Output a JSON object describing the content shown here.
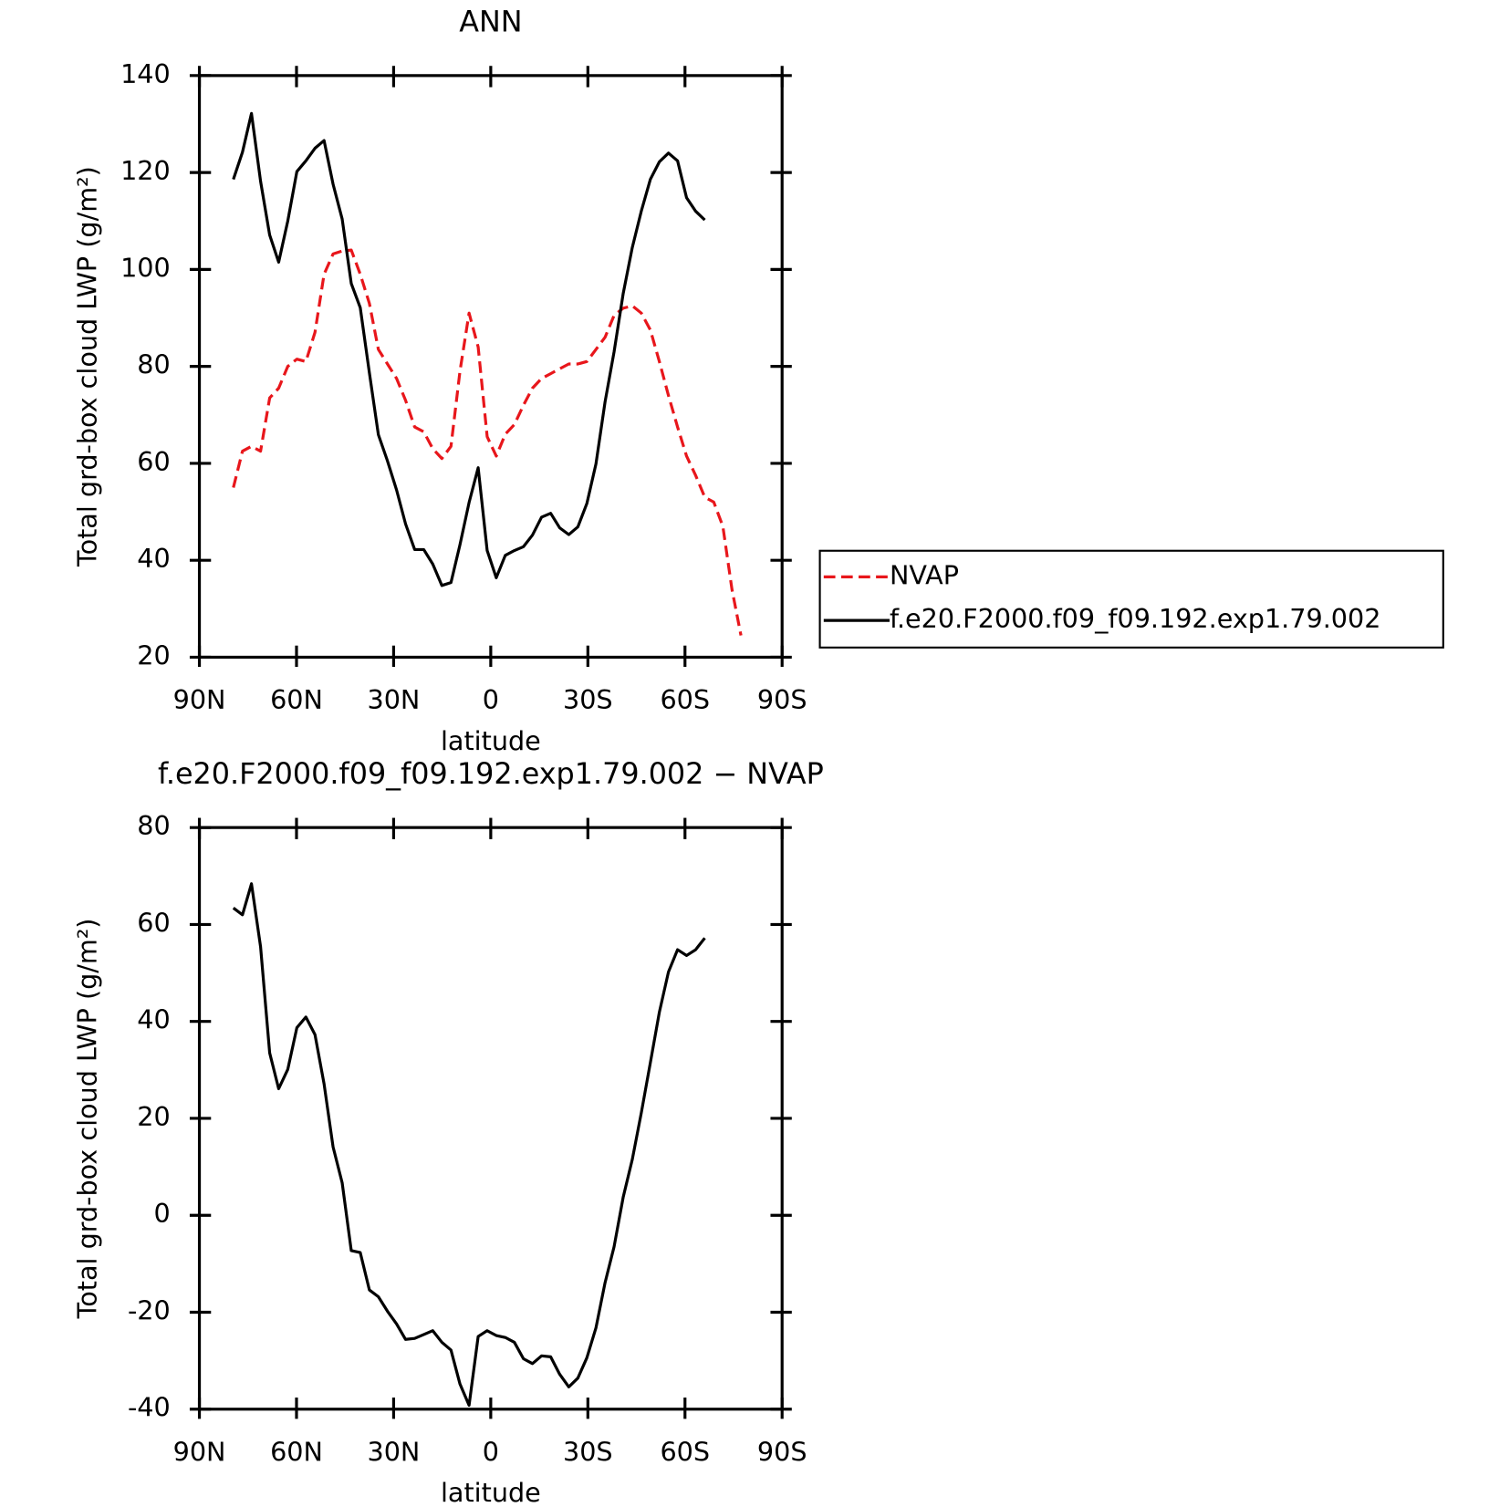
{
  "chart_data": [
    {
      "type": "line",
      "title": "ANN",
      "xlabel": "latitude",
      "ylabel": "Total grd-box cloud LWP (g/m²)",
      "x": [
        79.5,
        76.7,
        73.9,
        71.1,
        68.3,
        65.5,
        62.7,
        59.9,
        57.1,
        54.3,
        51.5,
        48.7,
        45.9,
        43.1,
        40.3,
        37.5,
        34.7,
        31.9,
        29.1,
        26.3,
        23.5,
        20.7,
        17.9,
        15.1,
        12.3,
        9.5,
        6.7,
        3.9,
        1.1,
        -1.7,
        -4.5,
        -7.3,
        -10.1,
        -12.9,
        -15.7,
        -18.5,
        -21.3,
        -24.1,
        -26.9,
        -29.7,
        -32.5,
        -35.3,
        -38.1,
        -40.9,
        -43.7,
        -46.5,
        -49.3,
        -52.1,
        -54.9,
        -57.7,
        -60.5,
        -63.3,
        -66.1,
        -68.9,
        -71.7,
        -74.5,
        -77.3
      ],
      "series": [
        {
          "name": "NVAP",
          "color": "#e8161b",
          "line_style": "dashed",
          "values": [
            55,
            62.5,
            63.5,
            62.5,
            73.5,
            75.5,
            80,
            81.5,
            81,
            87,
            99,
            103.2,
            103.8,
            104,
            99,
            93,
            83.5,
            80.5,
            77.5,
            73,
            67.5,
            66.5,
            63,
            61,
            63.5,
            79,
            91,
            84,
            65.5,
            61.5,
            66,
            68,
            72,
            75.5,
            77.5,
            78.5,
            79.5,
            80.5,
            80.5,
            81,
            83.5,
            86,
            90.5,
            92,
            92.5,
            91,
            87.5,
            81,
            74,
            67.5,
            61.5,
            57.5,
            53,
            52,
            47,
            34,
            24.5
          ]
        },
        {
          "name": "f.e20.F2000.f09_f09.192.exp1.79.002",
          "color": "#000000",
          "line_style": "solid",
          "values": [
            118.6,
            124.2,
            132.2,
            118.2,
            107.1,
            101.5,
            110.0,
            120.2,
            122.4,
            125.0,
            126.6,
            117.6,
            110.4,
            97.1,
            92.1,
            78.7,
            65.9,
            60.5,
            54.5,
            47.5,
            42.2,
            42.2,
            39.2,
            34.8,
            35.4,
            43.2,
            51.9,
            59.1,
            42.0,
            36.4,
            41.0,
            42.0,
            42.8,
            45.2,
            48.9,
            49.7,
            46.7,
            45.3,
            46.9,
            51.7,
            59.9,
            72.7,
            83,
            95,
            104.5,
            112,
            118.6,
            122.2,
            124,
            122.4,
            114.8,
            112,
            110.2,
            null,
            null,
            null,
            null
          ]
        }
      ],
      "xlim": [
        90,
        -90
      ],
      "xticks": [
        {
          "value": 90,
          "label": "90N"
        },
        {
          "value": 60,
          "label": "60N"
        },
        {
          "value": 30,
          "label": "30N"
        },
        0,
        {
          "value": -30,
          "label": "30S"
        },
        {
          "value": -60,
          "label": "60S"
        },
        {
          "value": -90,
          "label": "90S"
        }
      ],
      "ylim": [
        20,
        140
      ],
      "yticks": [
        20,
        40,
        60,
        80,
        100,
        120,
        140
      ],
      "legend": "right"
    },
    {
      "type": "line",
      "title": "f.e20.F2000.f09_f09.192.exp1.79.002 − NVAP",
      "xlabel": "latitude",
      "ylabel": "Total grd-box cloud LWP (g/m²)",
      "x": [
        79.5,
        76.7,
        73.9,
        71.1,
        68.3,
        65.5,
        62.7,
        59.9,
        57.1,
        54.3,
        51.5,
        48.7,
        45.9,
        43.1,
        40.3,
        37.5,
        34.7,
        31.9,
        29.1,
        26.3,
        23.5,
        20.7,
        17.9,
        15.1,
        12.3,
        9.5,
        6.7,
        3.9,
        1.1,
        -1.7,
        -4.5,
        -7.3,
        -10.1,
        -12.9,
        -15.7,
        -18.5,
        -21.3,
        -24.1,
        -26.9,
        -29.7,
        -32.5,
        -35.3,
        -38.1,
        -40.9,
        -43.7,
        -46.5,
        -49.3,
        -52.1,
        -54.9,
        -57.7,
        -60.5,
        -63.3,
        -66.1,
        -68.9,
        -71.7,
        -74.5,
        -77.3
      ],
      "series": [
        {
          "color": "#000000",
          "line_style": "solid",
          "values": [
            63.4,
            62,
            68.4,
            55.4,
            33.5,
            26.1,
            30.1,
            38.7,
            40.9,
            37.3,
            27.1,
            14.1,
            6.7,
            -7.3,
            -7.7,
            -15.4,
            -16.8,
            -19.8,
            -22.4,
            -25.6,
            -25.4,
            -24.6,
            -23.8,
            -26.2,
            -27.8,
            -34.8,
            -39.2,
            -25,
            -23.8,
            -24.8,
            -25.2,
            -26.2,
            -29.6,
            -30.6,
            -29,
            -29.2,
            -32.8,
            -35.4,
            -33.6,
            -29.4,
            -23.2,
            -13.9,
            -6.5,
            3.7,
            11.5,
            21.1,
            31.5,
            41.9,
            50.2,
            54.8,
            53.6,
            54.8,
            57.2,
            null,
            null,
            null,
            null
          ]
        }
      ],
      "xlim": [
        90,
        -90
      ],
      "xticks": [
        {
          "value": 90,
          "label": "90N"
        },
        {
          "value": 60,
          "label": "60N"
        },
        {
          "value": 30,
          "label": "30N"
        },
        0,
        {
          "value": -30,
          "label": "30S"
        },
        {
          "value": -60,
          "label": "60S"
        },
        {
          "value": -90,
          "label": "90S"
        }
      ],
      "ylim": [
        -40,
        80
      ],
      "yticks": [
        -40,
        -20,
        0,
        20,
        40,
        60,
        80
      ]
    }
  ]
}
